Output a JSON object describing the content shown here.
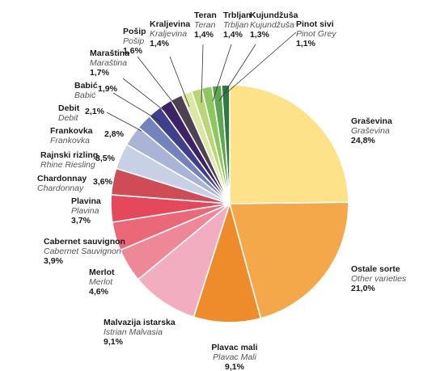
{
  "chart_data": {
    "type": "pie",
    "start": "12 o'clock",
    "direction": "clockwise",
    "slices": [
      {
        "name": "Graševina",
        "name_en": "Graševina",
        "value": 24.8,
        "value_label": "24,8%",
        "color": "#fde28a"
      },
      {
        "name": "Ostale sorte",
        "name_en": "Other varieties",
        "value": 21.0,
        "value_label": "21,0%",
        "color": "#f5a84a"
      },
      {
        "name": "Plavac mali",
        "name_en": "Plavac Mali",
        "value": 9.1,
        "value_label": "9,1%",
        "color": "#ee8c2c"
      },
      {
        "name": "Malvazija istarska",
        "name_en": "Istrian Malvasia",
        "value": 9.1,
        "value_label": "9,1%",
        "color": "#f3adc1"
      },
      {
        "name": "Merlot",
        "name_en": "Merlot",
        "value": 4.6,
        "value_label": "4,6%",
        "color": "#ee8796"
      },
      {
        "name": "Cabernet sauvignon",
        "name_en": "Cabernet Sauvignon",
        "value": 3.9,
        "value_label": "3,9%",
        "color": "#ea6878"
      },
      {
        "name": "Plavina",
        "name_en": "Plavina",
        "value": 3.7,
        "value_label": "3,7%",
        "color": "#e4485a"
      },
      {
        "name": "Chardonnay",
        "name_en": "Chardonnay",
        "value": 3.6,
        "value_label": "3,6%",
        "color": "#cf4b55"
      },
      {
        "name": "Rajnski rizling",
        "name_en": "Rhine Riesling",
        "value": 3.5,
        "value_label": "3,5%",
        "color": "#c8d0e6"
      },
      {
        "name": "Frankovka",
        "name_en": "Frankovka",
        "value": 2.8,
        "value_label": "2,8%",
        "color": "#a9b4d7"
      },
      {
        "name": "Debit",
        "name_en": "Debit",
        "value": 2.1,
        "value_label": "2,1%",
        "color": "#7583bd"
      },
      {
        "name": "Babić",
        "name_en": "Babić",
        "value": 1.9,
        "value_label": "1,9%",
        "color": "#3f3f8c"
      },
      {
        "name": "Maraština",
        "name_en": "Maraština",
        "value": 1.7,
        "value_label": "1,7%",
        "color": "#3c2266"
      },
      {
        "name": "Pošip",
        "name_en": "Pošip",
        "value": 1.6,
        "value_label": "1,6%",
        "color": "#4e4152"
      },
      {
        "name": "Kraljevina",
        "name_en": "Kraljevina",
        "value": 1.4,
        "value_label": "1,4%",
        "color": "#dce7a3"
      },
      {
        "name": "Teran",
        "name_en": "Teran",
        "value": 1.4,
        "value_label": "1,4%",
        "color": "#b9d777"
      },
      {
        "name": "Trbljan",
        "name_en": "Trbljan",
        "value": 1.4,
        "value_label": "1,4%",
        "color": "#8cc75f"
      },
      {
        "name": "Kujundžuša",
        "name_en": "Kujundžuša",
        "value": 1.3,
        "value_label": "1,3%",
        "color": "#5fa74f"
      },
      {
        "name": "Pinot sivi",
        "name_en": "Pinot Grey",
        "value": 1.1,
        "value_label": "1,1%",
        "color": "#2f7a42"
      }
    ]
  }
}
